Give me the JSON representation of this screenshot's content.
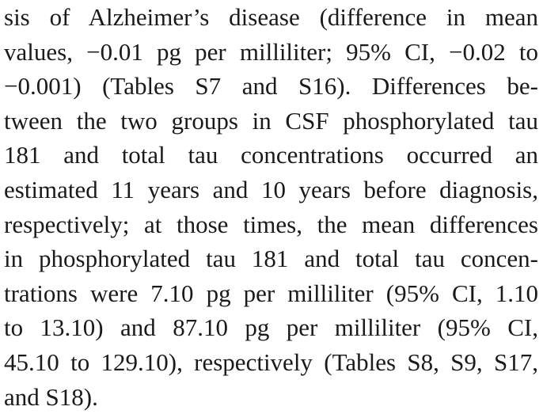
{
  "paragraph": {
    "lines": [
      "sis of Alzheimer’s disease (difference in mean",
      "values, −0.01 pg per milliliter; 95% CI, −0.02 to",
      "−0.001) (Tables S7 and S16). Differences be-",
      "tween the two groups in CSF phosphorylated tau",
      "181 and total tau concentrations occurred an",
      "estimated 11 years and 10 years before diagnosis,",
      "respectively; at those times, the mean differences",
      "in phosphorylated tau 181 and total tau concen-",
      "trations were 7.10 pg per milliliter (95% CI, 1.10",
      "to 13.10) and 87.10 pg per milliliter (95% CI,",
      "45.10 to 129.10), respectively (Tables S8, S9, S17,",
      "and S18)."
    ]
  }
}
